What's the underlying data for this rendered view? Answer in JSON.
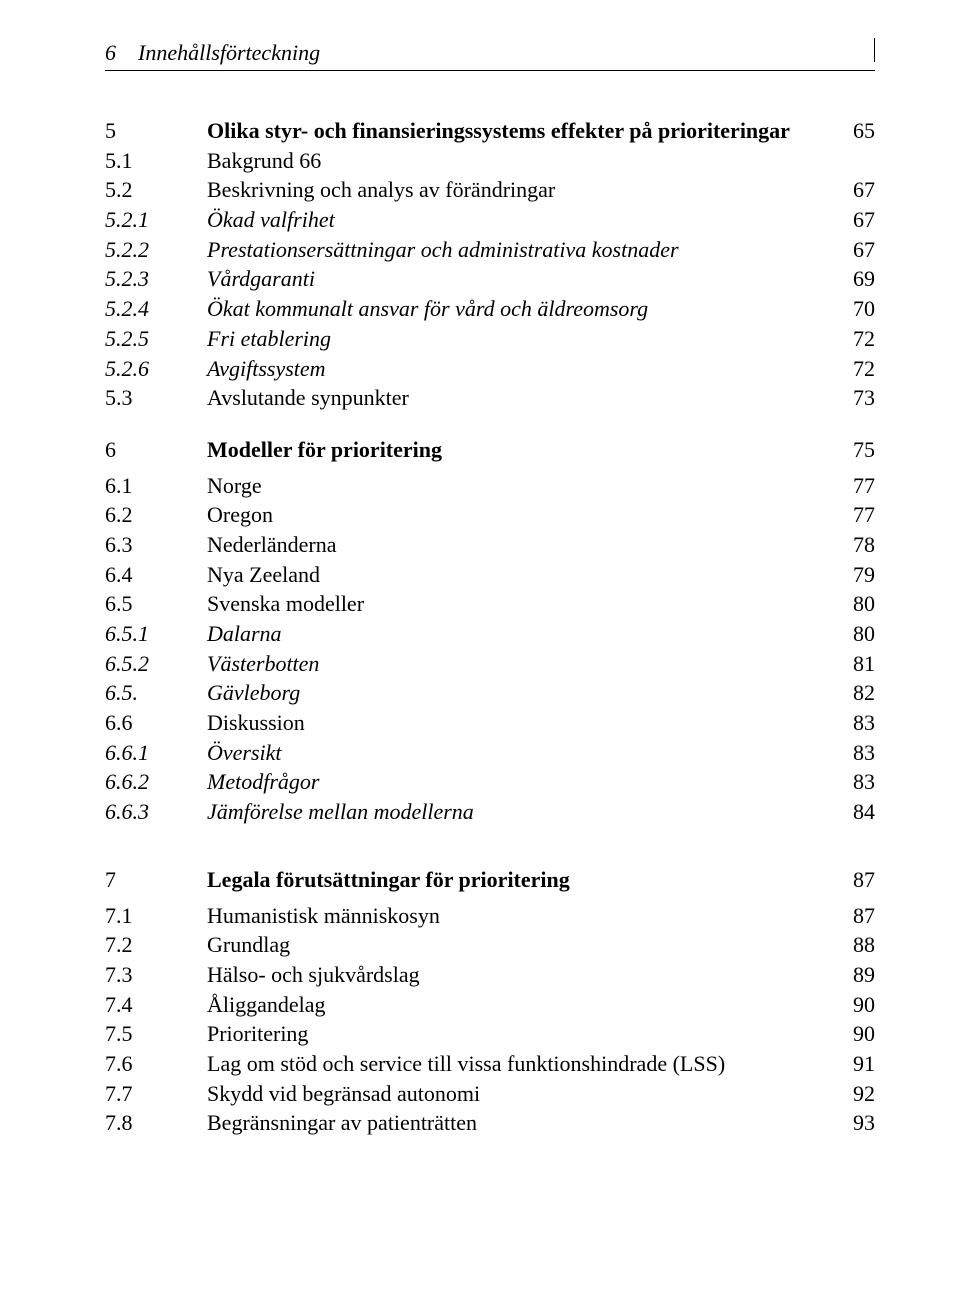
{
  "header": {
    "page_number": "6",
    "running_title": "Innehållsförteckning"
  },
  "entries": [
    {
      "num": "5",
      "title": "Olika styr- och finansieringssystems effekter på prioriteringar",
      "page": "65",
      "level": 0,
      "bold": true,
      "italic": false,
      "gap_before": "l",
      "title_bold_only": true
    },
    {
      "num": "5.1",
      "title": "Bakgrund 66",
      "page": "",
      "level": 0,
      "bold": false,
      "italic": false
    },
    {
      "num": "5.2",
      "title": "Beskrivning och analys av förändringar",
      "page": "67",
      "level": 0,
      "bold": false,
      "italic": false
    },
    {
      "num": "5.2.1",
      "title": "Ökad valfrihet",
      "page": "67",
      "level": 1,
      "bold": false,
      "italic": true
    },
    {
      "num": "5.2.2",
      "title": "Prestationsersättningar och administrativa kostnader",
      "page": "67",
      "level": 1,
      "bold": false,
      "italic": true
    },
    {
      "num": "5.2.3",
      "title": "Vårdgaranti",
      "page": "69",
      "level": 1,
      "bold": false,
      "italic": true
    },
    {
      "num": "5.2.4",
      "title": "Ökat kommunalt ansvar för vård och äldreomsorg",
      "page": "70",
      "level": 1,
      "bold": false,
      "italic": true
    },
    {
      "num": "5.2.5",
      "title": "Fri etablering",
      "page": "72",
      "level": 1,
      "bold": false,
      "italic": true
    },
    {
      "num": "5.2.6",
      "title": "Avgiftssystem",
      "page": "72",
      "level": 1,
      "bold": false,
      "italic": true
    },
    {
      "num": "5.3",
      "title": "Avslutande synpunkter",
      "page": "73",
      "level": 0,
      "bold": false,
      "italic": false
    },
    {
      "num": "6",
      "title": "Modeller för prioritering",
      "page": "75",
      "level": 0,
      "bold": true,
      "italic": false,
      "gap_before": "m"
    },
    {
      "num": "6.1",
      "title": "Norge",
      "page": "77",
      "level": 0,
      "bold": false,
      "italic": false,
      "gap_before": "s"
    },
    {
      "num": "6.2",
      "title": "Oregon",
      "page": "77",
      "level": 0,
      "bold": false,
      "italic": false
    },
    {
      "num": "6.3",
      "title": "Nederländerna",
      "page": "78",
      "level": 0,
      "bold": false,
      "italic": false
    },
    {
      "num": "6.4",
      "title": "Nya Zeeland",
      "page": "79",
      "level": 0,
      "bold": false,
      "italic": false
    },
    {
      "num": "6.5",
      "title": "Svenska modeller",
      "page": "80",
      "level": 0,
      "bold": false,
      "italic": false
    },
    {
      "num": "6.5.1",
      "title": "Dalarna",
      "page": "80",
      "level": 1,
      "bold": false,
      "italic": true
    },
    {
      "num": "6.5.2",
      "title": "Västerbotten",
      "page": "81",
      "level": 1,
      "bold": false,
      "italic": true
    },
    {
      "num": "6.5.",
      "title": "Gävleborg",
      "page": "82",
      "level": 1,
      "bold": false,
      "italic": true
    },
    {
      "num": "6.6",
      "title": "Diskussion",
      "page": "83",
      "level": 0,
      "bold": false,
      "italic": false
    },
    {
      "num": "6.6.1",
      "title": "Översikt",
      "page": "83",
      "level": 1,
      "bold": false,
      "italic": true
    },
    {
      "num": "6.6.2",
      "title": "Metodfrågor",
      "page": "83",
      "level": 1,
      "bold": false,
      "italic": true
    },
    {
      "num": "6.6.3",
      "title": "Jämförelse mellan modellerna",
      "page": "84",
      "level": 1,
      "bold": false,
      "italic": true
    },
    {
      "num": "7",
      "title": "Legala förutsättningar för prioritering",
      "page": "87",
      "level": 0,
      "bold": true,
      "italic": false,
      "gap_before": "l"
    },
    {
      "num": "7.1",
      "title": "Humanistisk människosyn",
      "page": "87",
      "level": 0,
      "bold": false,
      "italic": false,
      "gap_before": "s"
    },
    {
      "num": "7.2",
      "title": "Grundlag",
      "page": "88",
      "level": 0,
      "bold": false,
      "italic": false
    },
    {
      "num": "7.3",
      "title": "Hälso- och sjukvårdslag",
      "page": "89",
      "level": 0,
      "bold": false,
      "italic": false
    },
    {
      "num": "7.4",
      "title": "Åliggandelag",
      "page": "90",
      "level": 0,
      "bold": false,
      "italic": false
    },
    {
      "num": "7.5",
      "title": "Prioritering",
      "page": "90",
      "level": 0,
      "bold": false,
      "italic": false
    },
    {
      "num": "7.6",
      "title": "Lag om stöd och service till vissa funktionshindrade (LSS)",
      "page": "91",
      "level": 0,
      "bold": false,
      "italic": false
    },
    {
      "num": "7.7",
      "title": "Skydd vid begränsad autonomi",
      "page": "92",
      "level": 0,
      "bold": false,
      "italic": false
    },
    {
      "num": "7.8",
      "title": "Begränsningar av patienträtten",
      "page": "93",
      "level": 0,
      "bold": false,
      "italic": false
    }
  ]
}
